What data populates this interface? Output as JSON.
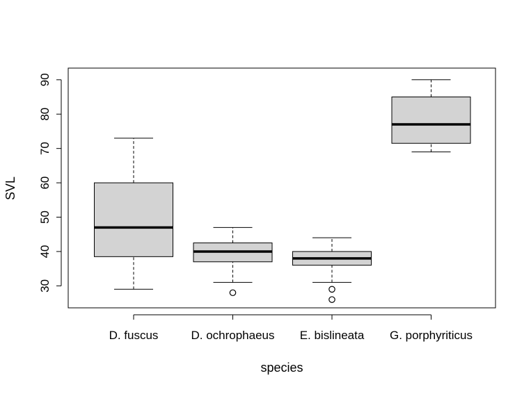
{
  "chart_data": {
    "type": "boxplot",
    "title": "",
    "xlabel": "species",
    "ylabel": "SVL",
    "categories": [
      "D. fuscus",
      "D. ochrophaeus",
      "E. bislineata",
      "G. porphyriticus"
    ],
    "yticks": [
      30,
      40,
      50,
      60,
      70,
      80,
      90
    ],
    "ylim": [
      23.6,
      93.4
    ],
    "box_fill": "#d3d3d3",
    "boxes": [
      {
        "category": "D. fuscus",
        "whisker_low": 29,
        "q1": 38.5,
        "median": 47,
        "q3": 60,
        "whisker_high": 73,
        "outliers": []
      },
      {
        "category": "D. ochrophaeus",
        "whisker_low": 31,
        "q1": 37,
        "median": 40,
        "q3": 42.5,
        "whisker_high": 47,
        "outliers": [
          28
        ]
      },
      {
        "category": "E. bislineata",
        "whisker_low": 31,
        "q1": 36,
        "median": 38,
        "q3": 40,
        "whisker_high": 44,
        "outliers": [
          29,
          26
        ]
      },
      {
        "category": "G. porphyriticus",
        "whisker_low": 69,
        "q1": 71.5,
        "median": 77,
        "q3": 85,
        "whisker_high": 90,
        "outliers": []
      }
    ]
  }
}
